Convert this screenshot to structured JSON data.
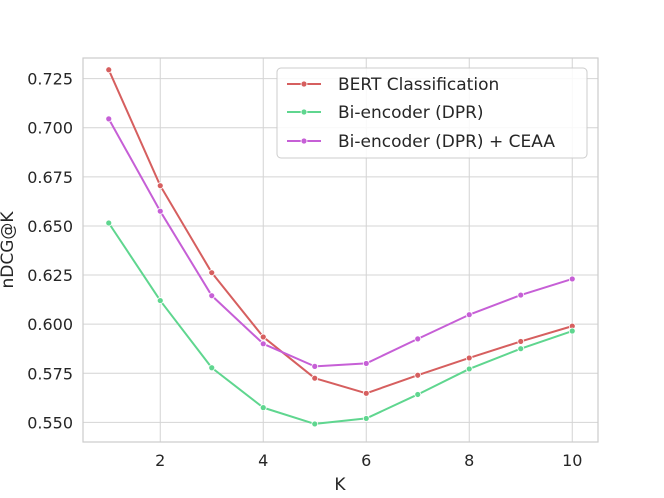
{
  "chart_data": {
    "type": "line",
    "title": "",
    "xlabel": "K",
    "ylabel": "nDCG@K",
    "x": [
      1,
      2,
      3,
      4,
      5,
      6,
      7,
      8,
      9,
      10
    ],
    "xlim": [
      0.5,
      10.5
    ],
    "ylim": [
      0.54,
      0.7355
    ],
    "xticks": [
      2,
      4,
      6,
      8,
      10
    ],
    "yticks": [
      0.55,
      0.575,
      0.6,
      0.625,
      0.65,
      0.675,
      0.7,
      0.725
    ],
    "ytick_labels": [
      "0.550",
      "0.575",
      "0.600",
      "0.625",
      "0.650",
      "0.675",
      "0.700",
      "0.725"
    ],
    "grid": true,
    "legend_position": "top-right",
    "series": [
      {
        "name": "BERT Classification",
        "color": "#d65f5f",
        "marker": "circle",
        "values": [
          0.7295,
          0.6705,
          0.6262,
          0.5935,
          0.5725,
          0.5648,
          0.574,
          0.5828,
          0.5912,
          0.599
        ]
      },
      {
        "name": "Bi-encoder (DPR)",
        "color": "#5fd68f",
        "marker": "circle",
        "values": [
          0.6515,
          0.612,
          0.5778,
          0.5575,
          0.5492,
          0.552,
          0.5642,
          0.5772,
          0.5875,
          0.5965
        ]
      },
      {
        "name": "Bi-encoder (DPR) + CEAA",
        "color": "#c65fd6",
        "marker": "circle",
        "values": [
          0.7045,
          0.6575,
          0.6145,
          0.59,
          0.5785,
          0.58,
          0.5925,
          0.6048,
          0.6148,
          0.623
        ]
      }
    ]
  }
}
